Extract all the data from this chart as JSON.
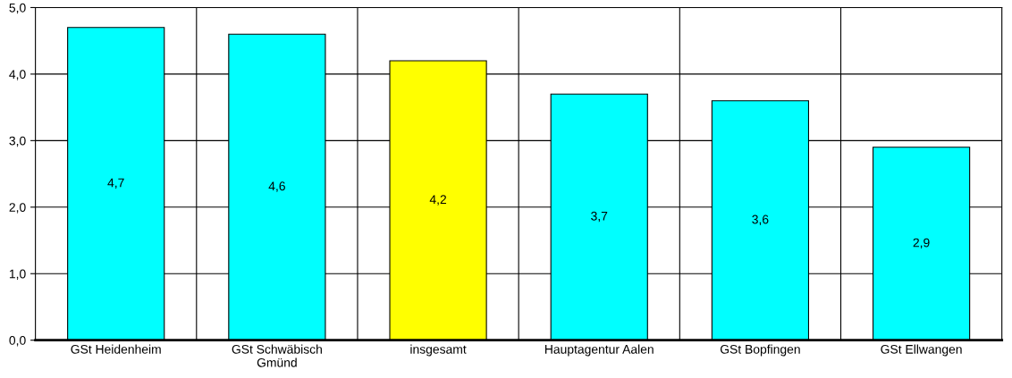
{
  "chart_data": {
    "type": "bar",
    "categories": [
      "GSt Heidenheim",
      "GSt Schwäbisch Gmünd",
      "insgesamt",
      "Hauptagentur Aalen",
      "GSt Bopfingen",
      "GSt Ellwangen"
    ],
    "values": [
      4.7,
      4.6,
      4.2,
      3.7,
      3.6,
      2.9
    ],
    "colors": [
      "#00ffff",
      "#00ffff",
      "#ffff00",
      "#00ffff",
      "#00ffff",
      "#00ffff"
    ],
    "value_labels": [
      "4,7",
      "4,6",
      "4,2",
      "3,7",
      "3,6",
      "2,9"
    ],
    "ylim": [
      0,
      5
    ],
    "yticks": [
      {
        "value": 0,
        "label": "0,0"
      },
      {
        "value": 1,
        "label": "1,0"
      },
      {
        "value": 2,
        "label": "2,0"
      },
      {
        "value": 3,
        "label": "3,0"
      },
      {
        "value": 4,
        "label": "4,0"
      },
      {
        "value": 5,
        "label": "5,0"
      }
    ],
    "grid": true,
    "legend": false
  }
}
